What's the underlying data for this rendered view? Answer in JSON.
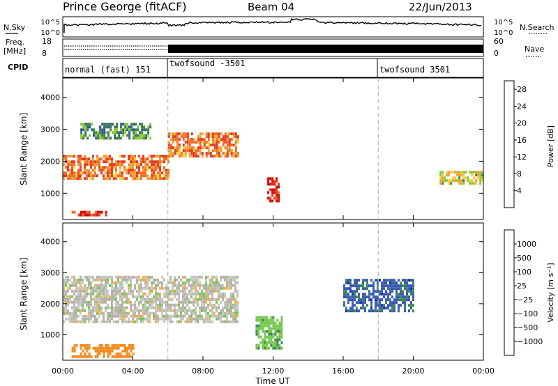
{
  "header": {
    "station": "Prince George (fitACF)",
    "beam": "Beam 04",
    "date": "22/Jun/2013"
  },
  "noise_panel": {
    "left_label": "N.Sky",
    "right_label": "N.Search",
    "left_ticks": [
      "10^5",
      "10^0"
    ],
    "right_ticks": [
      "10^5",
      "10^0"
    ]
  },
  "freq_panel": {
    "left_label_line1": "Freq.",
    "left_label_line2": "[MHz]",
    "left_ticks": [
      "18",
      "8"
    ],
    "right_label": "Nave",
    "right_ticks": [
      "60",
      "0"
    ]
  },
  "cpid_panel": {
    "label": "CPID",
    "segments": [
      "normal (fast) 151",
      "twofsound -3501",
      "twofsound 3501"
    ]
  },
  "colors": {
    "power_scale": [
      "#0a14e6",
      "#2846c8",
      "#3c6e64",
      "#3c8c3c",
      "#8cc83c",
      "#f0d23c",
      "#f0a03c",
      "#f06e28",
      "#e63c1e",
      "#d20a0a"
    ],
    "velocity_scale": [
      "#d20a0a",
      "#e6461e",
      "#f08c1e",
      "#f0b450",
      "#c8c8c0",
      "#b4b4aa",
      "#78c850",
      "#3c8c50",
      "#3c5ab4",
      "#1e32b4"
    ]
  },
  "chart_data": [
    {
      "type": "heatmap",
      "title": "Power",
      "xlabel": "",
      "ylabel": "Slant Range [km]",
      "xlim": [
        "00:00",
        "24:00"
      ],
      "ylim": [
        180,
        4600
      ],
      "x_ticks": [
        "00:00",
        "04:00",
        "08:00",
        "12:00",
        "16:00",
        "20:00",
        "00:00"
      ],
      "y_ticks": [
        "1000",
        "2000",
        "3000",
        "4000"
      ],
      "colorbar": {
        "label": "Power [dB]",
        "ticks": [
          "4",
          "8",
          "12",
          "16",
          "20",
          "24",
          "28"
        ],
        "range": [
          0,
          30
        ]
      },
      "scan_mode_changes": [
        "06:00",
        "18:00"
      ],
      "echo_bands": [
        {
          "name": "main ionospheric scatter",
          "time": [
            "00:00",
            "06:00"
          ],
          "range_km": [
            1500,
            2200
          ],
          "power_db": 22
        },
        {
          "name": "main ionospheric scatter",
          "time": [
            "06:00",
            "10:00"
          ],
          "range_km": [
            2200,
            2900
          ],
          "power_db": 22
        },
        {
          "name": "upper band",
          "time": [
            "01:00",
            "05:00"
          ],
          "range_km": [
            2700,
            3200
          ],
          "power_db": 10
        },
        {
          "name": "near-range echoes",
          "time": [
            "00:30",
            "02:30"
          ],
          "range_km": [
            350,
            450
          ],
          "power_db": 26
        },
        {
          "name": "enhanced patch",
          "time": [
            "11:40",
            "12:20"
          ],
          "range_km": [
            800,
            1500
          ],
          "power_db": 28
        },
        {
          "name": "dusk band",
          "time": [
            "21:30",
            "24:00"
          ],
          "range_km": [
            1300,
            1700
          ],
          "power_db": 16
        }
      ]
    },
    {
      "type": "heatmap",
      "title": "Velocity",
      "xlabel": "Time UT",
      "ylabel": "Slant Range [km]",
      "xlim": [
        "00:00",
        "24:00"
      ],
      "ylim": [
        180,
        4600
      ],
      "x_ticks": [
        "00:00",
        "04:00",
        "08:00",
        "12:00",
        "16:00",
        "20:00",
        "00:00"
      ],
      "y_ticks": [
        "1000",
        "2000",
        "3000",
        "4000"
      ],
      "colorbar": {
        "label": "Velocity [m s⁻¹]",
        "ticks": [
          "1000",
          "500",
          "100",
          "25",
          "−25",
          "−100",
          "−500",
          "−1000"
        ]
      },
      "scan_mode_changes": [
        "06:00",
        "18:00"
      ],
      "echo_bands": [
        {
          "name": "ground scatter",
          "time": [
            "00:00",
            "10:00"
          ],
          "range_km": [
            1400,
            2900
          ],
          "velocity_ms": 0
        },
        {
          "name": "near-range echoes",
          "time": [
            "00:30",
            "04:00"
          ],
          "range_km": [
            300,
            700
          ],
          "velocity_ms": -200
        },
        {
          "name": "positive patch",
          "time": [
            "11:00",
            "12:30"
          ],
          "range_km": [
            600,
            1600
          ],
          "velocity_ms": 80
        },
        {
          "name": "positive echoes",
          "time": [
            "16:00",
            "20:00"
          ],
          "range_km": [
            1800,
            2800
          ],
          "velocity_ms": 700
        }
      ]
    }
  ]
}
